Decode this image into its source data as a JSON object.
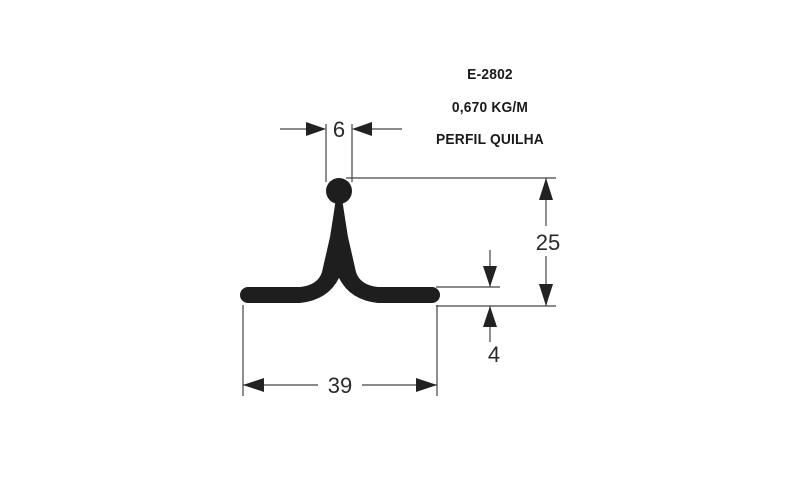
{
  "profile": {
    "code": "E-2802",
    "weight": "0,670 KG/M",
    "name": "PERFIL QUILHA"
  },
  "dimensions": {
    "top_width": "6",
    "height": "25",
    "thickness": "4",
    "base_width": "39"
  },
  "colors": {
    "profile": "#1e1e1e",
    "lines": "#444444",
    "text": "#1a1a1a",
    "background": "#ffffff"
  }
}
